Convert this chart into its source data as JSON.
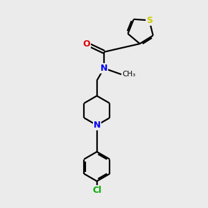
{
  "background_color": "#ebebeb",
  "bond_color": "#000000",
  "atom_colors": {
    "N": "#0000ee",
    "O": "#dd0000",
    "S": "#cccc00",
    "Cl": "#00aa00",
    "C": "#000000"
  },
  "figsize": [
    3.0,
    3.0
  ],
  "dpi": 100
}
